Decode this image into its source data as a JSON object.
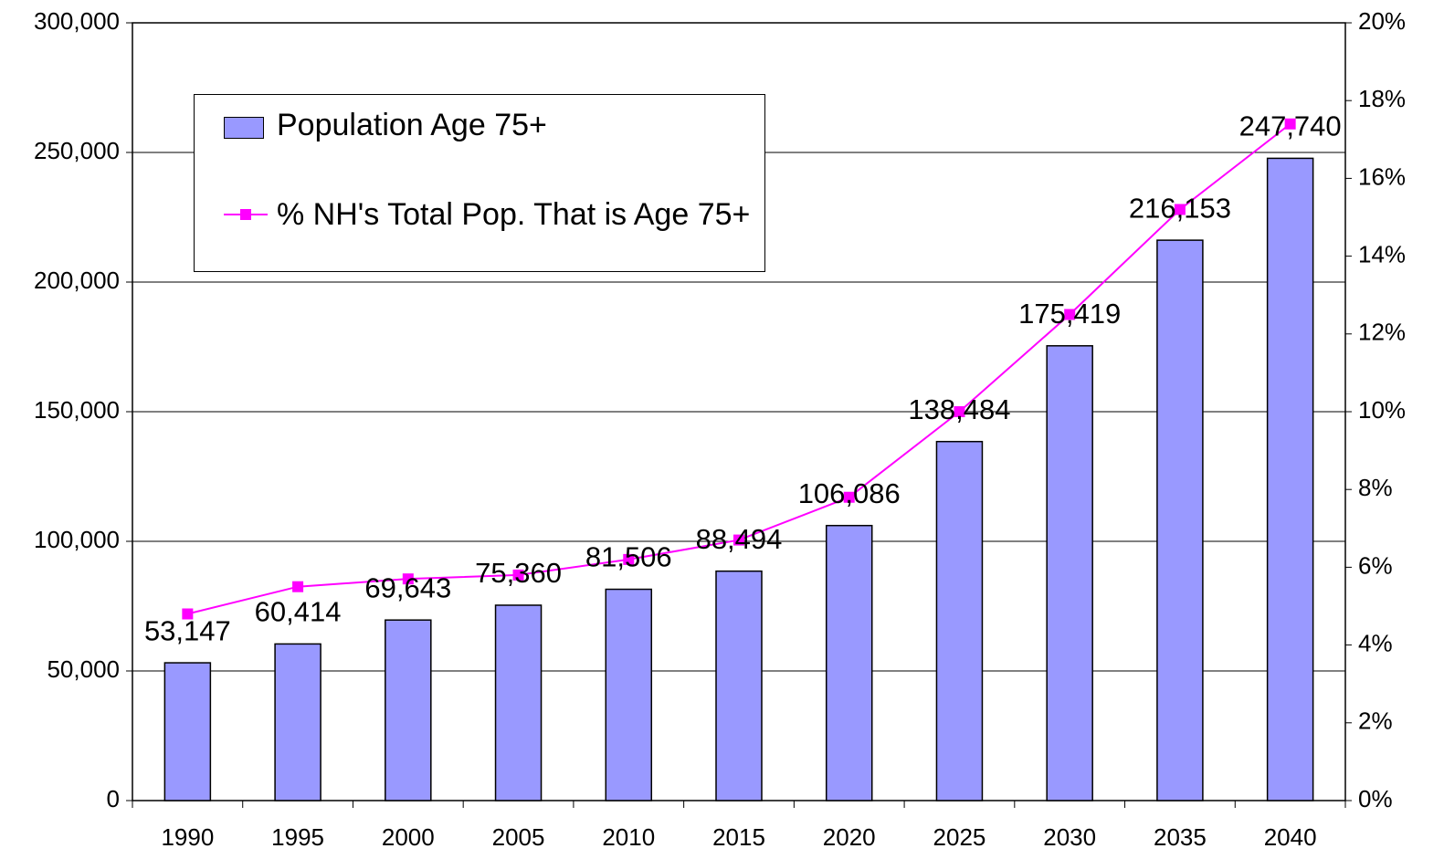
{
  "chart_data": {
    "type": "bar",
    "categories": [
      "1990",
      "1995",
      "2000",
      "2005",
      "2010",
      "2015",
      "2020",
      "2025",
      "2030",
      "2035",
      "2040"
    ],
    "series": [
      {
        "name": "Population Age 75+",
        "color": "#9999ff",
        "values": [
          53147,
          60414,
          69643,
          75360,
          81506,
          88494,
          106086,
          138484,
          175419,
          216153,
          247740
        ],
        "value_labels": [
          "53,147",
          "60,414",
          "69,643",
          "75,360",
          "81,506",
          "88,494",
          "106,086",
          "138,484",
          "175,419",
          "216,153",
          "247,740"
        ]
      },
      {
        "name": "% NH's Total Pop. That is Age 75+",
        "color": "#ff00ff",
        "type": "line",
        "axis": "y2",
        "values": [
          4.8,
          5.5,
          5.7,
          5.8,
          6.2,
          6.7,
          7.8,
          10.0,
          12.5,
          15.2,
          17.4
        ]
      }
    ],
    "ylim": [
      0,
      300000
    ],
    "yticks": [
      0,
      {
        "value": 50000,
        "label": "50,000"
      },
      {
        "value": 100000,
        "label": "100,000"
      },
      {
        "value": 150000,
        "label": "150,000"
      },
      {
        "value": 200000,
        "label": "200,000"
      },
      {
        "value": 250000,
        "label": "250,000"
      },
      {
        "value": 300000,
        "label": "300,000"
      }
    ],
    "y2lim": [
      0,
      20
    ],
    "y2ticks": [
      {
        "value": 0,
        "label": "0%"
      },
      {
        "value": 2,
        "label": "2%"
      },
      {
        "value": 4,
        "label": "4%"
      },
      {
        "value": 6,
        "label": "6%"
      },
      {
        "value": 8,
        "label": "8%"
      },
      {
        "value": 10,
        "label": "10%"
      },
      {
        "value": 12,
        "label": "12%"
      },
      {
        "value": 14,
        "label": "14%"
      },
      {
        "value": 16,
        "label": "16%"
      },
      {
        "value": 18,
        "label": "18%"
      },
      {
        "value": 20,
        "label": "20%"
      }
    ],
    "grid": true
  }
}
